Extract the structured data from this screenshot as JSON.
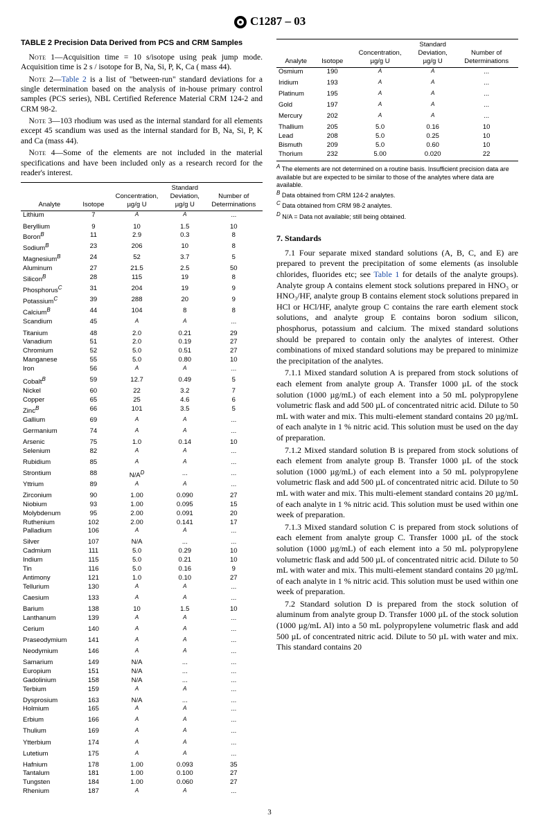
{
  "header": {
    "designation": "C1287 – 03"
  },
  "table_title": "TABLE 2  Precision Data Derived from PCS and CRM Samples",
  "notes": {
    "n1": "Acquisition time = 10 s/isotope using peak jump mode. Acquisition time is 2 s / isotope for B, Na, Si, P, K, Ca ( mass 44).",
    "n2a": " is a list of \"between-run\" standard deviations for a single determination based on the analysis of in-house primary control samples (PCS series), NBL Certified Reference Material CRM 124-2 and CRM 98-2.",
    "n2link": "Table 2",
    "n3": "103 rhodium was used as the internal standard for all elements except 45 scandium was used as the internal standard for B, Na, Si, P, K and Ca (mass 44).",
    "n4": "Some of the elements are not included in the material specifications and have been included only as a research record for the reader's interest."
  },
  "table_headers": {
    "h1": "Analyte",
    "h2": "Isotope",
    "h3a": "Concentration,",
    "h3b": "µg/g U",
    "h4a": "Standard",
    "h4b": "Deviation,",
    "h4c": "µg/g U",
    "h5a": "Number of",
    "h5b": "Determinations"
  },
  "left_rows": [
    [
      "Lithium",
      "7",
      "<i>A</i>",
      "<i>A</i>",
      "..."
    ],
    [
      "Beryllium",
      "9",
      "10",
      "1.5",
      "10"
    ],
    [
      "Boron<i>B</i>",
      "11",
      "2.9",
      "0.3",
      "8"
    ],
    [
      "Sodium<i>B</i>",
      "23",
      "206",
      "10",
      "8"
    ],
    [
      "Magnesium<i>B</i>",
      "24",
      "52",
      "3.7",
      "5"
    ],
    [
      "Aluminum",
      "27",
      "21.5",
      "2.5",
      "50"
    ],
    [
      "Silicon<i>B</i>",
      "28",
      "115",
      "19",
      "8"
    ],
    [
      "Phosphorus<i>C</i>",
      "31",
      "204",
      "19",
      "9"
    ],
    [
      "Potassium<i>C</i>",
      "39",
      "288",
      "20",
      "9"
    ],
    [
      "Calcium<i>B</i>",
      "44",
      "104",
      "8",
      "8"
    ],
    [
      "Scandium",
      "45",
      "<i>A</i>",
      "<i>A</i>",
      "..."
    ],
    [
      "Titanium",
      "48",
      "2.0",
      "0.21",
      "29"
    ],
    [
      "Vanadium",
      "51",
      "2.0",
      "0.19",
      "27"
    ],
    [
      "Chromium",
      "52",
      "5.0",
      "0.51",
      "27"
    ],
    [
      "Manganese",
      "55",
      "5.0",
      "0.80",
      "10"
    ],
    [
      "Iron",
      "56",
      "<i>A</i>",
      "<i>A</i>",
      "..."
    ],
    [
      "Cobalt<i>B</i>",
      "59",
      "12.7",
      "0.49",
      "5"
    ],
    [
      "Nickel",
      "60",
      "22",
      "3.2",
      "7"
    ],
    [
      "Copper",
      "65",
      "25",
      "4.6",
      "6"
    ],
    [
      "Zinc<i>B</i>",
      "66",
      "101",
      "3.5",
      "5"
    ],
    [
      "Gallium",
      "69",
      "<i>A</i>",
      "<i>A</i>",
      "..."
    ],
    [
      "Germanium",
      "74",
      "<i>A</i>",
      "<i>A</i>",
      "..."
    ],
    [
      "Arsenic",
      "75",
      "1.0",
      "0.14",
      "10"
    ],
    [
      "Selenium",
      "82",
      "<i>A</i>",
      "<i>A</i>",
      "..."
    ],
    [
      "Rubidium",
      "85",
      "<i>A</i>",
      "<i>A</i>",
      "..."
    ],
    [
      "Strontium",
      "88",
      "N/A<i>D</i>",
      "...",
      "..."
    ],
    [
      "Yttrium",
      "89",
      "<i>A</i>",
      "<i>A</i>",
      "..."
    ],
    [
      "Zirconium",
      "90",
      "1.00",
      "0.090",
      "27"
    ],
    [
      "Niobium",
      "93",
      "1.00",
      "0.095",
      "15"
    ],
    [
      "Molybdenum",
      "95",
      "2.00",
      "0.091",
      "20"
    ],
    [
      "Ruthenium",
      "102",
      "2.00",
      "0.141",
      "17"
    ],
    [
      "Palladium",
      "106",
      "<i>A</i>",
      "<i>A</i>",
      "..."
    ],
    [
      "Silver",
      "107",
      "N/A",
      "...",
      "..."
    ],
    [
      "Cadmium",
      "111",
      "5.0",
      "0.29",
      "10"
    ],
    [
      "Indium",
      "115",
      "5.0",
      "0.21",
      "10"
    ],
    [
      "Tin",
      "116",
      "5.0",
      "0.16",
      "9"
    ],
    [
      "Antimony",
      "121",
      "1.0",
      "0.10",
      "27"
    ],
    [
      "Tellurium",
      "130",
      "<i>A</i>",
      "<i>A</i>",
      "..."
    ],
    [
      "Caesium",
      "133",
      "<i>A</i>",
      "<i>A</i>",
      "..."
    ],
    [
      "Barium",
      "138",
      "10",
      "1.5",
      "10"
    ],
    [
      "Lanthanum",
      "139",
      "<i>A</i>",
      "<i>A</i>",
      "..."
    ],
    [
      "Cerium",
      "140",
      "<i>A</i>",
      "<i>A</i>",
      "..."
    ],
    [
      "Praseodymium",
      "141",
      "<i>A</i>",
      "<i>A</i>",
      "..."
    ],
    [
      "Neodymium",
      "146",
      "<i>A</i>",
      "<i>A</i>",
      "..."
    ],
    [
      "Samarium",
      "149",
      "N/A",
      "...",
      "..."
    ],
    [
      "Europium",
      "151",
      "N/A",
      "...",
      "..."
    ],
    [
      "Gadolinium",
      "158",
      "N/A",
      "...",
      "..."
    ],
    [
      "Terbium",
      "159",
      "<i>A</i>",
      "<i>A</i>",
      "..."
    ],
    [
      "Dysprosium",
      "163",
      "N/A",
      "...",
      "..."
    ],
    [
      "Holmium",
      "165",
      "<i>A</i>",
      "<i>A</i>",
      "..."
    ],
    [
      "Erbium",
      "166",
      "<i>A</i>",
      "<i>A</i>",
      "..."
    ],
    [
      "Thulium",
      "169",
      "<i>A</i>",
      "<i>A</i>",
      "..."
    ],
    [
      "Ytterbium",
      "174",
      "<i>A</i>",
      "<i>A</i>",
      "..."
    ],
    [
      "Lutetium",
      "175",
      "<i>A</i>",
      "<i>A</i>",
      "..."
    ],
    [
      "Hafnium",
      "178",
      "1.00",
      "0.093",
      "35"
    ],
    [
      "Tantalum",
      "181",
      "1.00",
      "0.100",
      "27"
    ],
    [
      "Tungsten",
      "184",
      "1.00",
      "0.060",
      "27"
    ],
    [
      "Rhenium",
      "187",
      "<i>A</i>",
      "<i>A</i>",
      "..."
    ]
  ],
  "right_rows": [
    [
      "Osmium",
      "190",
      "<i>A</i>",
      "<i>A</i>",
      "..."
    ],
    [
      "Iridium",
      "193",
      "<i>A</i>",
      "<i>A</i>",
      "..."
    ],
    [
      "Platinum",
      "195",
      "<i>A</i>",
      "<i>A</i>",
      "..."
    ],
    [
      "Gold",
      "197",
      "<i>A</i>",
      "<i>A</i>",
      "..."
    ],
    [
      "Mercury",
      "202",
      "<i>A</i>",
      "<i>A</i>",
      "..."
    ],
    [
      "Thallium",
      "205",
      "5.0",
      "0.16",
      "10"
    ],
    [
      "Lead",
      "208",
      "5.0",
      "0.25",
      "10"
    ],
    [
      "Bismuth",
      "209",
      "5.0",
      "0.60",
      "10"
    ],
    [
      "Thorium",
      "232",
      "5.00",
      "0.020",
      "22"
    ]
  ],
  "footnotes": {
    "fa": "The elements are not determined on a routine basis. Insufficient precision data are available but are expected to be similar to those of the analytes where data are available.",
    "fb": "Data obtained from CRM 124-2 analytes.",
    "fc": "Data obtained from CRM 98-2 analytes.",
    "fd": "N/A = Data not available; still being obtained."
  },
  "section7": {
    "head": "7. Standards",
    "p71a": "7.1 Four separate mixed standard solutions (A, B, C, and E) are prepared to prevent the precipitation of some elements (as insoluble chlorides, fluorides etc; see ",
    "p71link": "Table 1",
    "p71b": " for details of the analyte groups). Analyte group A contains element stock solutions prepared in HNO₃ or HNO₃/HF, analyte group B contains element stock solutions prepared in HCl or HCl/HF, analyte group C contains the rare earth element stock solutions, and analyte group E contains boron sodium silicon, phosphorus, potassium and calcium. The mixed standard solutions should be prepared to contain only the analytes of interest. Other combinations of mixed standard solutions may be prepared to minimize the precipitation of the analytes.",
    "p711": "7.1.1 Mixed standard solution A is prepared from stock solutions of each element from analyte group A. Transfer 1000 µL of the stock solution (1000 µg/mL) of each element into a 50 mL polypropylene volumetric flask and add 500 µL of concentrated nitric acid. Dilute to 50 mL with water and mix. This multi-element standard contains 20 µg/mL of each analyte in 1 % nitric acid. This solution must be used on the day of preparation.",
    "p712": "7.1.2 Mixed standard solution B is prepared from stock solutions of each element from analyte group B. Transfer 1000 µL of the stock solution (1000 µg/mL) of each element into a 50 mL polypropylene volumetric flask and add 500 µL of concentrated nitric acid. Dilute to 50 mL with water and mix. This multi-element standard contains 20 µg/mL of each analyte in 1 % nitric acid. This solution must be used within one week of preparation.",
    "p713": "7.1.3 Mixed standard solution C is prepared from stock solutions of each element from analyte group C. Transfer 1000 µL of the stock solution (1000 µg/mL) of each element into a 50 mL polypropylene volumetric flask and add 500 µL of concentrated nitric acid. Dilute to 50 mL with water and mix. This multi-element standard contains 20 µg/mL of each analyte in 1 % nitric acid. This solution must be used within one week of preparation.",
    "p72": "7.2 Standard solution D is prepared from the stock solution of aluminum from analyte group D. Transfer 1000 µL of the stock solution (1000 µg/mL Al) into a 50 mL polypropylene volumetric flask and add 500 µL of concentrated nitric acid. Dilute to 50 µL with water and mix. This standard contains 20"
  },
  "pagenum": "3"
}
